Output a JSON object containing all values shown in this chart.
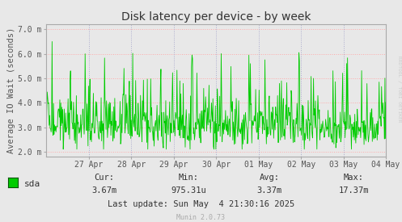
{
  "title": "Disk latency per device - by week",
  "ylabel": "Average IO Wait (seconds)",
  "bg_color": "#e8e8e8",
  "plot_bg_color": "#e8e8e8",
  "h_grid_color": "#ffaaaa",
  "v_grid_color": "#aaaacc",
  "line_color": "#00cc00",
  "axis_color": "#aaaaaa",
  "tick_color": "#555555",
  "ylim_min": 0.0018,
  "ylim_max": 0.0072,
  "yticks": [
    0.002,
    0.003,
    0.004,
    0.005,
    0.006,
    0.007
  ],
  "ytick_labels": [
    "2.0 m",
    "3.0 m",
    "4.0 m",
    "5.0 m",
    "6.0 m",
    "7.0 m"
  ],
  "xlabel_dates": [
    "27 Apr",
    "28 Apr",
    "29 Apr",
    "30 Apr",
    "01 May",
    "02 May",
    "03 May",
    "04 May"
  ],
  "legend_label": "sda",
  "legend_color": "#00cc00",
  "footer_cur_label": "Cur:",
  "footer_cur_val": "3.67m",
  "footer_min_label": "Min:",
  "footer_min_val": "975.31u",
  "footer_avg_label": "Avg:",
  "footer_avg_val": "3.37m",
  "footer_max_label": "Max:",
  "footer_max_val": "17.37m",
  "footer_lastupdate": "Last update: Sun May  4 21:30:16 2025",
  "munin_version": "Munin 2.0.73",
  "rrdtool_label": "RRDTOOL / TOBI OETIKER",
  "seed": 12345
}
